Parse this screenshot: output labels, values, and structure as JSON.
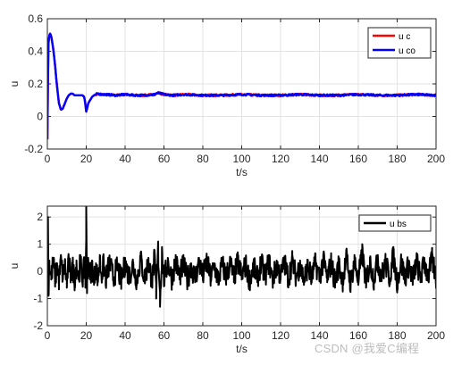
{
  "chart_data": [
    {
      "type": "line",
      "xlabel": "t/s",
      "ylabel": "u",
      "xlim": [
        0,
        200
      ],
      "ylim": [
        -0.2,
        0.6
      ],
      "xticks": [
        "0",
        "20",
        "40",
        "60",
        "80",
        "100",
        "120",
        "140",
        "160",
        "180",
        "200"
      ],
      "yticks": [
        "-0.2",
        "0",
        "0.2",
        "0.4",
        "0.6"
      ],
      "grid": true,
      "legend_position": "top-right",
      "series": [
        {
          "name": "u c",
          "color": "#ff0000",
          "x": [
            0,
            0.5,
            1,
            1.5,
            2,
            3,
            4,
            5,
            6,
            7,
            8,
            9,
            10,
            11,
            12,
            13,
            14,
            15,
            16,
            17,
            18,
            19,
            19.5,
            20,
            20.5,
            21,
            22,
            23,
            24,
            25,
            26,
            28,
            30,
            35,
            40,
            45,
            50,
            55,
            57,
            60,
            65,
            70,
            80,
            90,
            100,
            110,
            120,
            130,
            140,
            150,
            160,
            170,
            180,
            190,
            200
          ],
          "values": [
            -0.14,
            0.44,
            0.5,
            0.51,
            0.49,
            0.42,
            0.31,
            0.18,
            0.08,
            0.04,
            0.05,
            0.08,
            0.11,
            0.13,
            0.14,
            0.14,
            0.13,
            0.13,
            0.13,
            0.13,
            0.13,
            0.12,
            0.08,
            0.03,
            0.05,
            0.08,
            0.1,
            0.12,
            0.13,
            0.135,
            0.14,
            0.135,
            0.135,
            0.13,
            0.135,
            0.13,
            0.13,
            0.135,
            0.145,
            0.135,
            0.13,
            0.135,
            0.13,
            0.13,
            0.135,
            0.13,
            0.13,
            0.135,
            0.13,
            0.13,
            0.135,
            0.13,
            0.13,
            0.135,
            0.13
          ]
        },
        {
          "name": "u co",
          "color": "#0000ff",
          "x": [
            0,
            0.5,
            1,
            1.5,
            2,
            3,
            4,
            5,
            6,
            7,
            8,
            9,
            10,
            11,
            12,
            13,
            14,
            15,
            16,
            17,
            18,
            19,
            19.5,
            20,
            20.5,
            21,
            22,
            23,
            24,
            25,
            26,
            28,
            30,
            35,
            40,
            45,
            50,
            55,
            57,
            60,
            65,
            70,
            80,
            90,
            100,
            110,
            120,
            130,
            140,
            150,
            160,
            170,
            180,
            190,
            200
          ],
          "values": [
            -0.14,
            0.44,
            0.5,
            0.51,
            0.49,
            0.42,
            0.31,
            0.18,
            0.08,
            0.04,
            0.05,
            0.08,
            0.11,
            0.13,
            0.14,
            0.14,
            0.13,
            0.13,
            0.13,
            0.13,
            0.13,
            0.12,
            0.08,
            0.03,
            0.05,
            0.08,
            0.1,
            0.12,
            0.13,
            0.135,
            0.14,
            0.135,
            0.135,
            0.13,
            0.135,
            0.13,
            0.13,
            0.135,
            0.145,
            0.135,
            0.13,
            0.135,
            0.13,
            0.13,
            0.135,
            0.13,
            0.13,
            0.135,
            0.13,
            0.13,
            0.135,
            0.13,
            0.13,
            0.135,
            0.13
          ]
        }
      ]
    },
    {
      "type": "line",
      "xlabel": "t/s",
      "ylabel": "u",
      "xlim": [
        0,
        200
      ],
      "ylim": [
        -2,
        2.4
      ],
      "xticks": [
        "0",
        "20",
        "40",
        "60",
        "80",
        "100",
        "120",
        "140",
        "160",
        "180",
        "200"
      ],
      "yticks": [
        "-2",
        "-1",
        "0",
        "1",
        "2"
      ],
      "grid": true,
      "legend_position": "top-right",
      "series": [
        {
          "name": "u bs",
          "color": "#000000",
          "x": [
            0,
            0.3,
            0.6,
            1,
            2,
            3,
            4,
            5,
            6,
            7,
            8,
            9,
            10,
            11,
            12,
            13,
            14,
            15,
            16,
            17,
            18,
            19,
            19.6,
            20,
            20.4,
            21,
            22,
            23,
            24,
            25,
            26,
            27,
            28,
            29,
            30,
            32,
            34,
            36,
            38,
            40,
            42,
            44,
            46,
            48,
            50,
            52,
            54,
            55,
            56,
            57,
            58,
            59,
            60,
            62,
            64,
            66,
            68,
            70,
            72,
            74,
            76,
            78,
            80,
            82,
            84,
            86,
            88,
            90,
            92,
            94,
            96,
            98,
            100,
            102,
            104,
            106,
            108,
            110,
            112,
            114,
            116,
            118,
            120,
            122,
            124,
            126,
            128,
            130,
            132,
            134,
            136,
            138,
            140,
            142,
            144,
            146,
            148,
            150,
            152,
            154,
            156,
            158,
            160,
            162,
            164,
            166,
            168,
            170,
            172,
            174,
            176,
            178,
            180,
            182,
            184,
            186,
            188,
            190,
            192,
            194,
            196,
            198,
            200
          ],
          "values": [
            0.1,
            2.0,
            -0.9,
            0.4,
            -0.3,
            0.5,
            -0.4,
            0.3,
            -0.5,
            0.6,
            -0.3,
            0.4,
            -0.6,
            0.5,
            -0.2,
            0.3,
            -0.5,
            0.4,
            -0.3,
            0.6,
            -0.4,
            0.2,
            -0.6,
            2.4,
            -0.8,
            0.5,
            -0.3,
            0.4,
            -0.5,
            0.3,
            -0.4,
            0.6,
            -0.2,
            0.4,
            -0.5,
            0.5,
            -0.4,
            0.3,
            -0.6,
            0.5,
            -0.3,
            0.4,
            -0.5,
            0.7,
            -0.4,
            0.5,
            -0.6,
            0.8,
            -1.0,
            1.1,
            -1.3,
            0.9,
            -0.5,
            0.5,
            -0.4,
            0.6,
            -0.3,
            0.4,
            -0.5,
            0.3,
            -0.4,
            0.5,
            -0.3,
            0.6,
            -0.4,
            0.3,
            -0.5,
            0.4,
            -0.3,
            0.5,
            -0.4,
            0.6,
            -0.3,
            0.4,
            -0.5,
            0.3,
            -0.4,
            0.5,
            -0.3,
            0.6,
            -0.5,
            0.4,
            -0.3,
            0.5,
            -0.4,
            0.6,
            -0.3,
            0.4,
            -0.5,
            0.3,
            -0.4,
            0.5,
            -0.3,
            0.6,
            -0.4,
            0.5,
            -0.6,
            0.4,
            -0.5,
            0.8,
            -0.7,
            0.6,
            -0.5,
            1.0,
            -0.6,
            0.5,
            -0.4,
            0.6,
            -0.3,
            0.5,
            -0.4,
            0.9,
            -0.6,
            0.5,
            -0.3,
            0.4,
            -0.5,
            0.6,
            -0.4,
            0.5,
            -0.3,
            0.7,
            -0.4
          ]
        }
      ]
    }
  ],
  "watermark": "CSDN @我爱C编程"
}
